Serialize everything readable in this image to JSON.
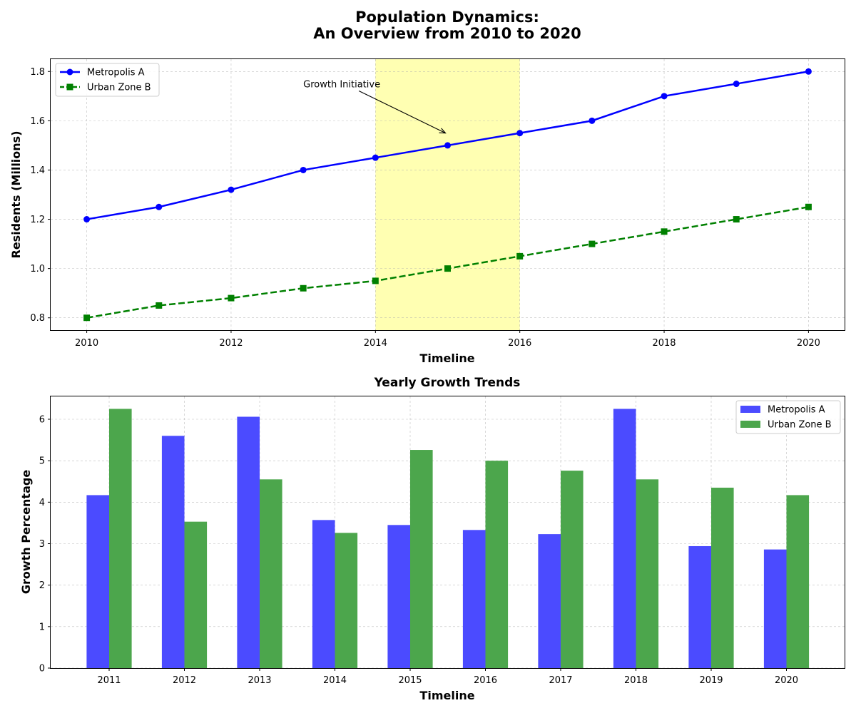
{
  "figure": {
    "title_line1": "Population Dynamics:",
    "title_line2": "An Overview from 2010 to 2020"
  },
  "chart_data": [
    {
      "type": "line",
      "title": "",
      "xlabel": "Timeline",
      "ylabel": "Residents (Millions)",
      "x": [
        2010,
        2011,
        2012,
        2013,
        2014,
        2015,
        2016,
        2017,
        2018,
        2019,
        2020
      ],
      "xlim": [
        2009.5,
        2020.5
      ],
      "ylim": [
        0.75,
        1.85
      ],
      "xticks": [
        2010,
        2012,
        2014,
        2016,
        2018,
        2020
      ],
      "yticks": [
        0.8,
        1.0,
        1.2,
        1.4,
        1.6,
        1.8
      ],
      "grid": true,
      "legend_position": "top-left",
      "series": [
        {
          "name": "Metropolis A",
          "values": [
            1.2,
            1.25,
            1.32,
            1.4,
            1.45,
            1.5,
            1.55,
            1.6,
            1.7,
            1.75,
            1.8
          ],
          "color": "#0000ff",
          "marker": "circle",
          "linestyle": "solid"
        },
        {
          "name": "Urban Zone B",
          "values": [
            0.8,
            0.85,
            0.88,
            0.92,
            0.95,
            1.0,
            1.05,
            1.1,
            1.15,
            1.2,
            1.25
          ],
          "color": "#008000",
          "marker": "square",
          "linestyle": "dashed"
        }
      ],
      "highlight_span": {
        "x_start": 2014,
        "x_end": 2016,
        "color": "#ffff00"
      },
      "annotation": {
        "text": "Growth Initiative",
        "text_x": 2013,
        "text_y": 1.75,
        "arrow_to_x": 2015,
        "arrow_to_y": 1.55
      }
    },
    {
      "type": "bar",
      "title": "Yearly Growth Trends",
      "xlabel": "Timeline",
      "ylabel": "Growth Percentage",
      "categories": [
        "2011",
        "2012",
        "2013",
        "2014",
        "2015",
        "2016",
        "2017",
        "2018",
        "2019",
        "2020"
      ],
      "ylim": [
        0,
        6.55
      ],
      "yticks": [
        0,
        1,
        2,
        3,
        4,
        5,
        6
      ],
      "grid": true,
      "legend_position": "top-right",
      "series": [
        {
          "name": "Metropolis A",
          "values": [
            4.17,
            5.6,
            6.06,
            3.57,
            3.45,
            3.33,
            3.23,
            6.25,
            2.94,
            2.86
          ],
          "color": "#4b4bff"
        },
        {
          "name": "Urban Zone B",
          "values": [
            6.25,
            3.53,
            4.55,
            3.26,
            5.26,
            5.0,
            4.76,
            4.55,
            4.35,
            4.17
          ],
          "color": "#4ca64c"
        }
      ]
    }
  ]
}
